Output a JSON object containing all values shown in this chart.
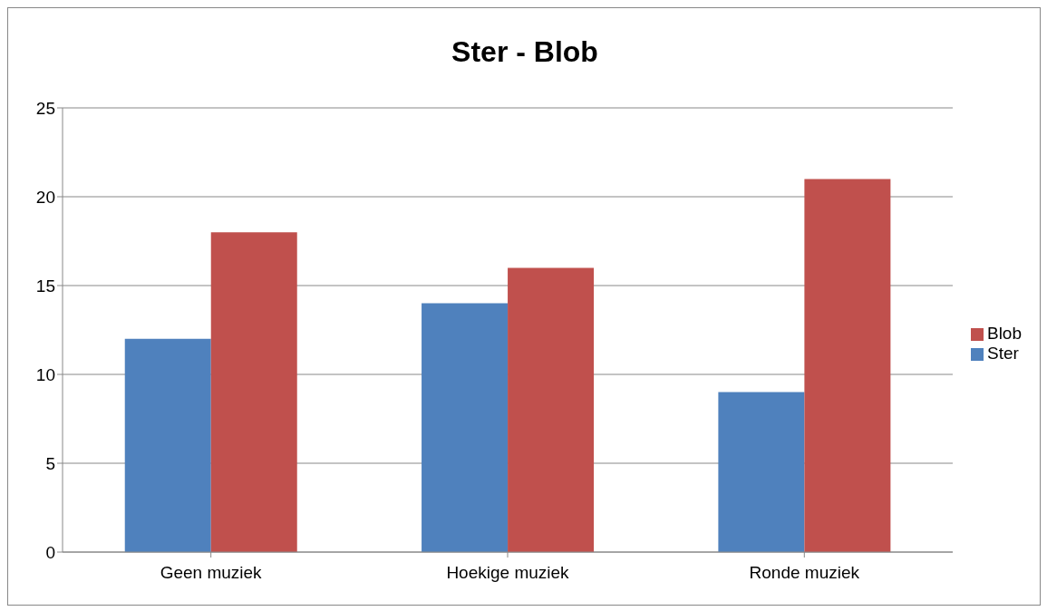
{
  "chart_data": {
    "type": "bar",
    "title": "Ster - Blob",
    "categories": [
      "Geen muziek",
      "Hoekige muziek",
      "Ronde muziek"
    ],
    "series": [
      {
        "name": "Ster",
        "color": "#4f81bd",
        "values": [
          12,
          14,
          9
        ]
      },
      {
        "name": "Blob",
        "color": "#c0504d",
        "values": [
          18,
          16,
          21
        ]
      }
    ],
    "ylim": [
      0,
      25
    ],
    "yticks": [
      0,
      5,
      10,
      15,
      20,
      25
    ],
    "grid": "y",
    "legend": "right"
  }
}
